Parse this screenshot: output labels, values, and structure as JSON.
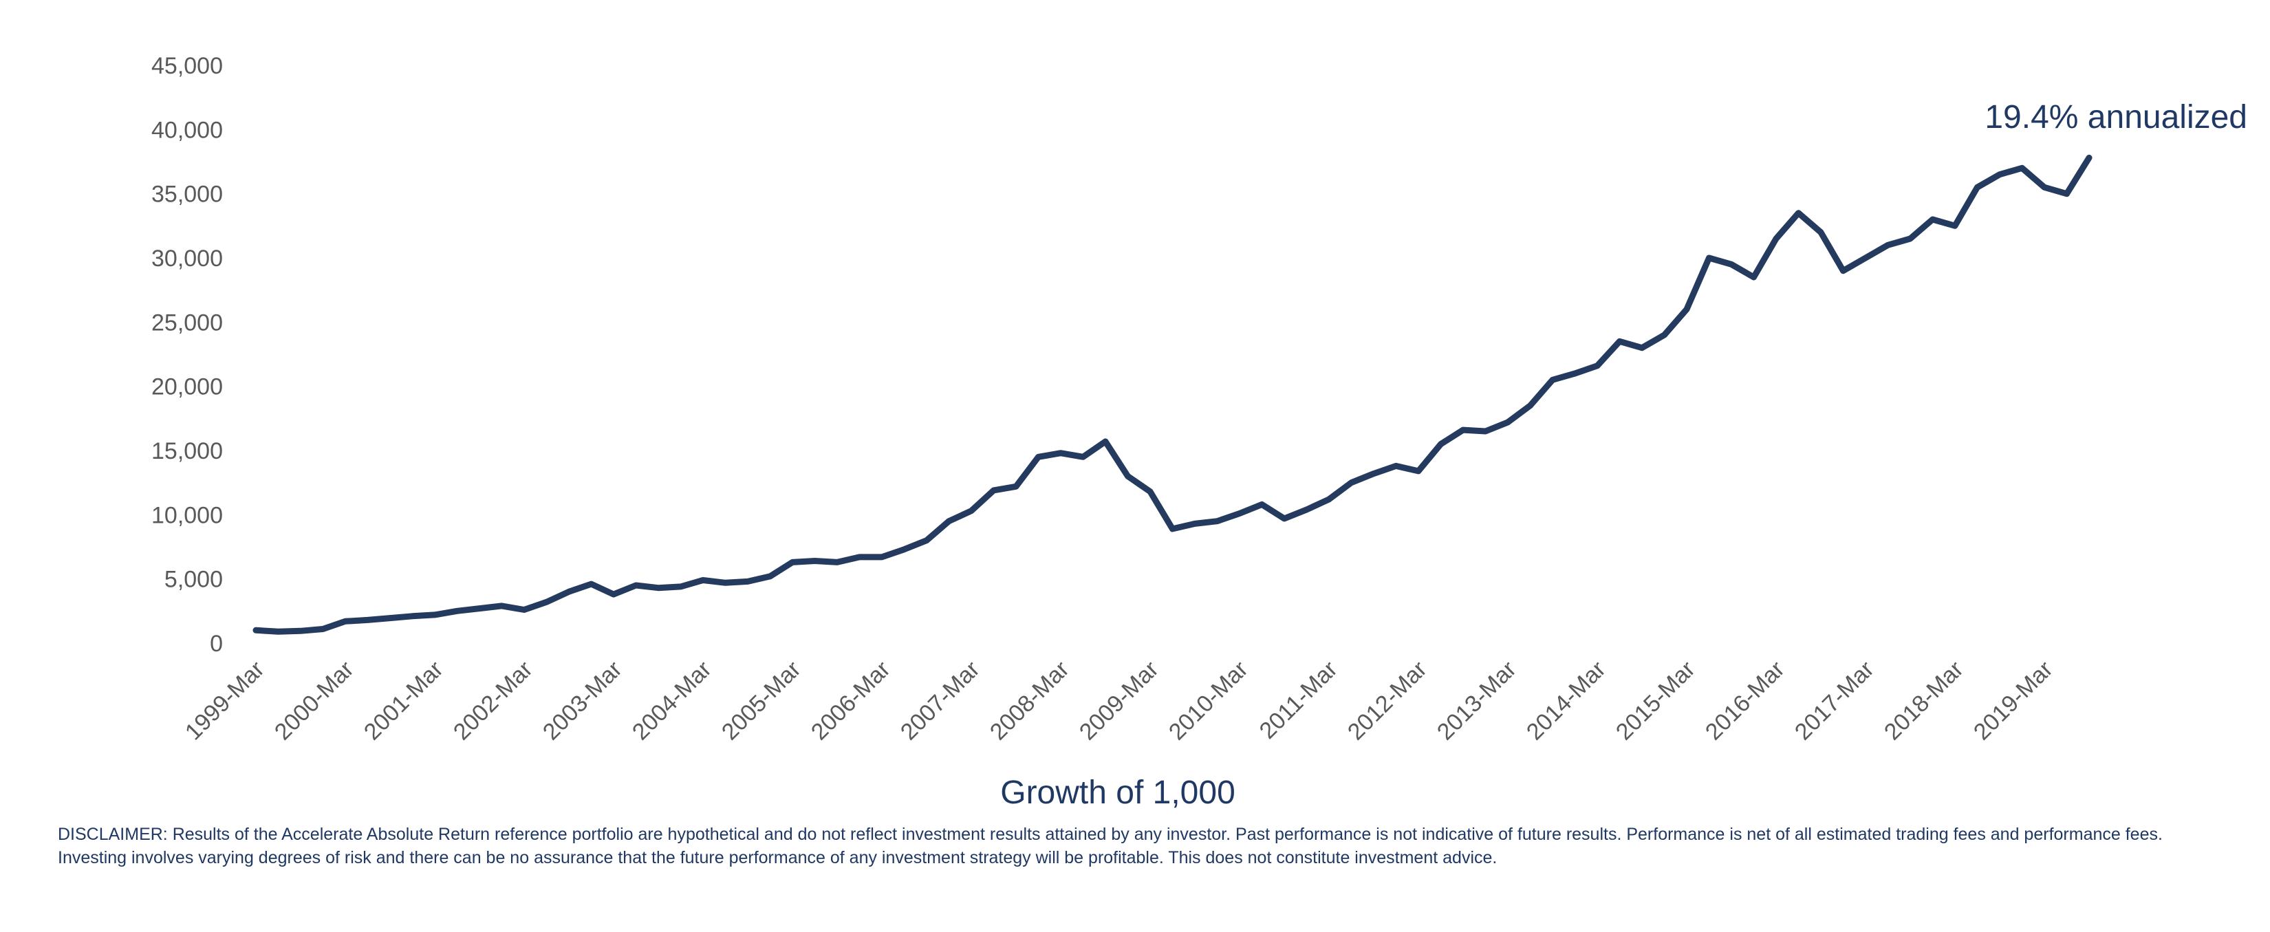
{
  "chart_data": {
    "type": "line",
    "title": "Growth of 1,000",
    "annotation": "19.4% annualized",
    "xlabel": "",
    "ylabel": "",
    "ylim": [
      0,
      45000
    ],
    "yticks": [
      "0",
      "5,000",
      "10,000",
      "15,000",
      "20,000",
      "25,000",
      "30,000",
      "35,000",
      "40,000",
      "45,000"
    ],
    "xticks": [
      "1999-Mar",
      "2000-Mar",
      "2001-Mar",
      "2002-Mar",
      "2003-Mar",
      "2004-Mar",
      "2005-Mar",
      "2006-Mar",
      "2007-Mar",
      "2008-Mar",
      "2009-Mar",
      "2010-Mar",
      "2011-Mar",
      "2012-Mar",
      "2013-Mar",
      "2014-Mar",
      "2015-Mar",
      "2016-Mar",
      "2017-Mar",
      "2018-Mar",
      "2019-Mar"
    ],
    "grid": false,
    "line_color": "#243a5e",
    "series": [
      {
        "x": [
          "1999-03",
          "1999-06",
          "1999-09",
          "1999-12",
          "2000-03",
          "2000-06",
          "2000-09",
          "2000-12",
          "2001-03",
          "2001-06",
          "2001-09",
          "2001-12",
          "2002-03",
          "2002-06",
          "2002-09",
          "2002-12",
          "2003-03",
          "2003-06",
          "2003-09",
          "2003-12",
          "2004-03",
          "2004-06",
          "2004-09",
          "2004-12",
          "2005-03",
          "2005-06",
          "2005-09",
          "2005-12",
          "2006-03",
          "2006-06",
          "2006-09",
          "2006-12",
          "2007-03",
          "2007-06",
          "2007-09",
          "2007-12",
          "2008-03",
          "2008-06",
          "2008-09",
          "2008-12",
          "2009-03",
          "2009-06",
          "2009-09",
          "2009-12",
          "2010-03",
          "2010-06",
          "2010-09",
          "2010-12",
          "2011-03",
          "2011-06",
          "2011-09",
          "2011-12",
          "2012-03",
          "2012-06",
          "2012-09",
          "2012-12",
          "2013-03",
          "2013-06",
          "2013-09",
          "2013-12",
          "2014-03",
          "2014-06",
          "2014-09",
          "2014-12",
          "2015-03",
          "2015-06",
          "2015-09",
          "2015-12",
          "2016-03",
          "2016-06",
          "2016-09",
          "2016-12",
          "2017-03",
          "2017-06",
          "2017-09",
          "2017-12",
          "2018-03",
          "2018-06",
          "2018-09",
          "2018-12",
          "2019-03",
          "2019-06",
          "2019-09"
        ],
        "values": [
          1000,
          900,
          950,
          1100,
          1700,
          1800,
          1950,
          2100,
          2200,
          2500,
          2700,
          2900,
          2600,
          3200,
          4000,
          4600,
          3800,
          4500,
          4300,
          4400,
          4900,
          4700,
          4800,
          5200,
          6300,
          6400,
          6300,
          6700,
          6700,
          7300,
          8000,
          9500,
          10300,
          11900,
          12200,
          14500,
          14800,
          14500,
          15700,
          13000,
          11800,
          8900,
          9300,
          9500,
          10100,
          10800,
          9700,
          10400,
          11200,
          12500,
          13200,
          13800,
          13400,
          15500,
          16600,
          16500,
          17200,
          18500,
          20500,
          21000,
          21600,
          23500,
          23000,
          24000,
          26000,
          30000,
          29500,
          28500,
          31500,
          33500,
          32000,
          29000,
          30000,
          31000,
          31500,
          33000,
          32500,
          35500,
          36500,
          37000,
          35500,
          35000,
          37800
        ]
      }
    ]
  },
  "disclaimer": "DISCLAIMER: Results of the Accelerate Absolute Return reference portfolio are hypothetical and do not reflect investment results attained by any investor. Past performance is not indicative of future results. Performance is net of all estimated trading fees and performance fees. Investing involves varying degrees of risk and there can be no assurance that the future performance of any investment strategy will be profitable. This does not constitute investment advice."
}
